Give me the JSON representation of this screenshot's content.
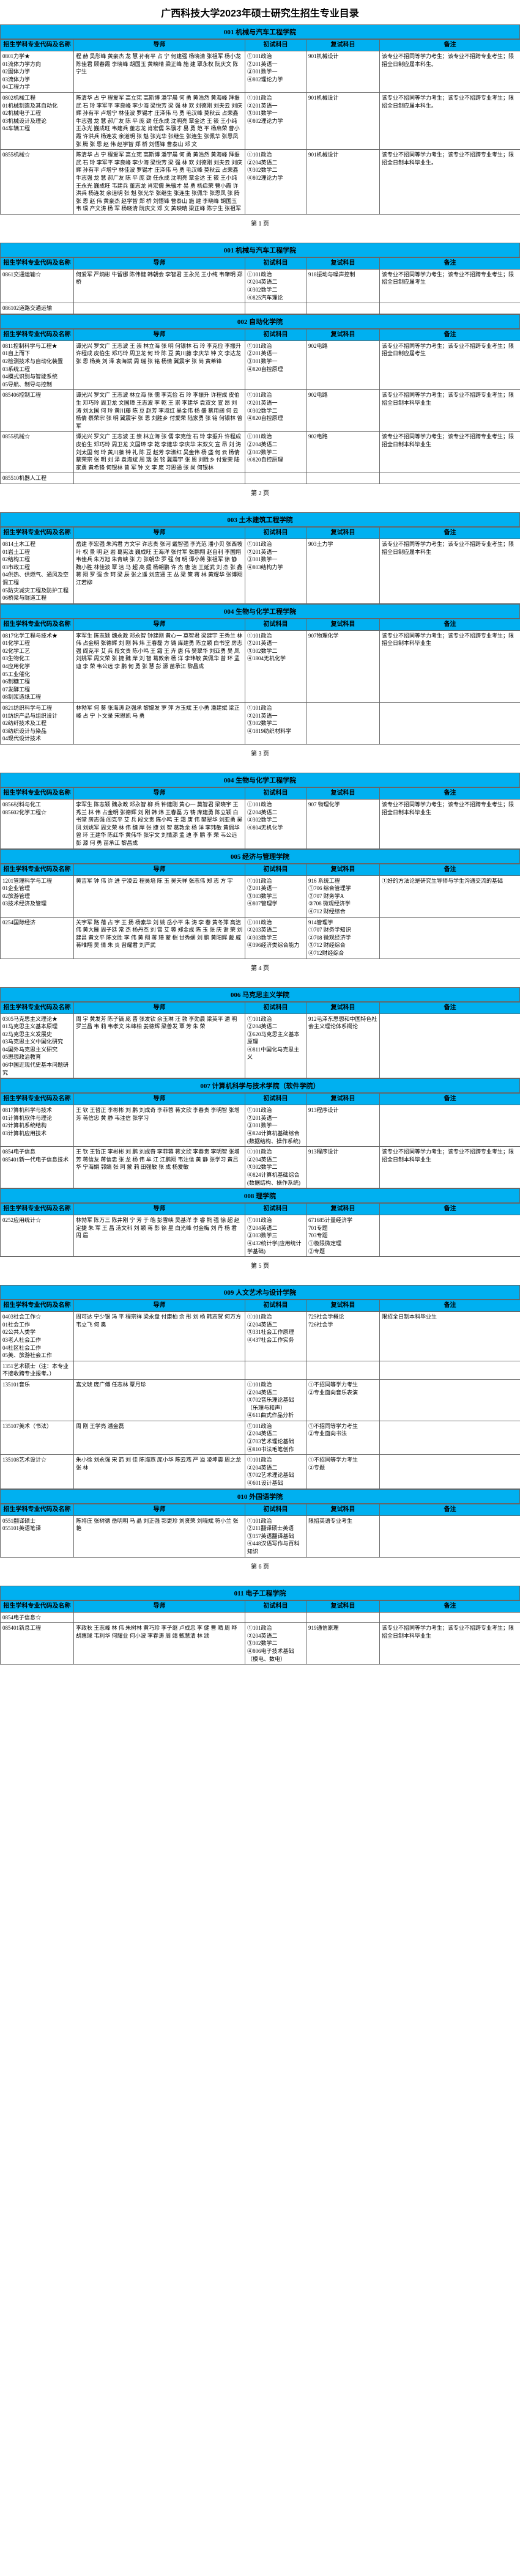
{
  "title": "广西科技大学2023年硕士研究生招生专业目录",
  "colors": {
    "header_bg": "#00b0f0",
    "border": "#666666",
    "text": "#000000",
    "bg": "#ffffff"
  },
  "headers": {
    "major": "招生学科专业代码及名称",
    "tutor": "导师",
    "exam1": "初试科目",
    "exam2": "复试科目",
    "note": "备注"
  },
  "pages": [
    {
      "colleges": [
        {
          "title": "001 机械与汽车工程学院",
          "rows": [
            {
              "major": "0801力学★\n01流体力学方向\n02固体力学\n03流体力学\n04工程力学",
              "tutor": "程 赫 吴彤峰 黄豪杰 龙 慧 孙有平 占 宁 何建强 杨晓清 张祖军 杨小龙 陈佳君 顾春霞 李晓峰 胡国玉 黄映晴 梁正峰 施 建 覃永权 阮庆文 陈宁生",
              "exam1": "①101政治\n②201英语一\n③301数学一\n④802理论力学",
              "exam2": "901机械设计",
              "note": "该专业不招同等学力考生；该专业不招跨专业考生；限招全日制应届本科生。"
            },
            {
              "major": "0802机械工程\n01机械制造及其自动化\n02机械电子工程\n03机械设计及理论\n04车辆工程",
              "tutor": "陈清华 占 宁 程爱军 高立宪 高斯博 潘宇晨 何 勇 黄浩然 黄海峰 拜振武 石 玲 李军平 李良峰 李少海 梁悦芳 梁 强 林 欢 刘德刚 刘夫云 刘庆辉 孙有平 卢增宁 林佳波 罗锡才 庄泽伟 马 勇 毛汉峰 莫秋云 占荣鑫 牛志强 龙 慧 郝广友 陈 平 庞 劲 任永成 沈明亮 覃金达 王 筱 王小纯 王永光 巍成旺 韦建兵 董志龙 肖宏儒 朱骥才 易 勇 范 平 杨启荣 曹小霞 许洪兵 杨连发 余道明 张 魁 张光华 张继生 张连生 张佩华 张恩凤 张 腾 张 恩 赵 伟 赵学智 郑 桥 刘悟锋 曹泰山 邓 文",
              "exam1": "①101政治\n②201英语一\n③301数学一\n④802理论力学",
              "exam2": "901机械设计",
              "note": "该专业不招同等学力考生；该专业不招跨专业考生；限招全日制应届本科生。"
            },
            {
              "major": "0855机械☆",
              "tutor": "陈清华 占 宁 程爱军 高立宪 高斯博 潘宇晨 何 勇 黄浩然 黄海峰 拜振武 石 玲 李军平 李良峰 李少海 梁悦芳 梁 强 林 欢 刘德刚 刘夫云 刘庆辉 孙有平 卢增宁 林佳波 罗锡才 庄泽伟 马 勇 毛汉峰 莫秋云 占荣鑫 牛志强 龙 慧 郝广友 陈 平 庞 劲 任永成 沈明亮 覃金达 王 筱 王小纯 王永光 巍成旺 韦建兵 董志龙 肖宏儒 朱骥才 易 勇 杨启荣 曹小霞 许洪兵 杨连发 余道明 张 魁 张光华 张继生 张连生 张佩华 张恩凤 张 腾 张 恩 赵 伟 黄豪杰 赵学智 郑 桥 刘悟锋 曹泰山 施 建 李晓峰 胡国玉 韦 璞 产文涛 杨 军 杨晓清 阮庆文 邓 文 黄映晴 梁正峰 陈宁生 张祖军",
              "exam1": "①101政治\n②204英语二\n③302数学二\n④802理论力学",
              "exam2": "901机械设计",
              "note": "该专业不招同等学力考生；该专业不招跨专业考生；限招全日制本科毕业生。"
            }
          ],
          "continues": true
        }
      ],
      "footer": "第 1 页"
    },
    {
      "colleges": [
        {
          "title": "001 机械与汽车工程学院",
          "rows": [
            {
              "major": "招生学科专业代码及名称",
              "tutor": "导师",
              "exam1": "初试科目",
              "exam2": "复试科目",
              "note": "备注",
              "isHeader": true
            },
            {
              "major": "0861交通运输☆",
              "tutor": "何爱军 严炳彬 牛留娜 陈伟健 韩朝会 李智君 王永光 王小纯 韦肇明 郑 桥",
              "exam1": "①101政治\n②204英语二\n③302数学二\n④825汽车理论",
              "exam2": "918振动与噪声控制",
              "note": "该专业不招同等学力考生；该专业不招跨专业考生；限招全日制应届考生"
            }
          ],
          "subrows": [
            {
              "major": "086102道路交通运输",
              "tutor": "",
              "exam1": "",
              "exam2": "",
              "note": ""
            }
          ]
        },
        {
          "title": "002 自动化学院",
          "rows": [
            {
              "major": "0811控制科学与工程★\n01自上而下\n02检测技术与自动化装置\n03系统工程\n04模式识别与智能系统\n05导航、制导与控制",
              "tutor": "谭光兴 罗文广 王志波 王 崇 林立海 张 明 何银林 石 玲 李克俭 李振升 许程成 皮伯生 邓巧玲 周卫龙 何 玲 陈 豆 黄川藤 李庆华 钟 文 李达龙 张 恩 杨英 刘 泽 袁海斌 周 瑞 张 铭 杨倩 冀震宇 张 尚 黄希锋",
              "exam1": "①101政治\n②201英语一\n③301数学一\n④820自控原理",
              "exam2": "902电路",
              "note": "该专业不招同等学力考生；该专业不招跨专业考生；限招全日制应届考生"
            },
            {
              "major": "085406控制工程",
              "tutor": "谭光兴 罗文广 王志波 林立海 张 儒 李克俭 石 玲 李振升 许程成 皮伯生 邓巧玲 周卫龙 文国璋 王志波 李 乾 王 崇 李建华 袁双文 宣 昂 刘 涛 刘太国 何 玲 黄川藤 陈 豆 赵芳 李淑红 吴金伟 杨 盛 蔡用阔 何 云 杨倩 蔡荣宗 张 明 冀震宇 张 恩 刘胜乡 付爱荣 陆家勇 张 铭 何银林 曾 军",
              "exam1": "①101政治\n②201英语一\n③302数学二\n④820自控原理",
              "exam2": "902电路",
              "note": "该专业不招同等学力考生；该专业不招跨专业考生；限招全日制本科毕业生"
            },
            {
              "major": "0855机械☆",
              "tutor": "谭光兴 罗文广 王志波 王 崇 林立海 张 儒 李克俭 石 玲 李振升 许程成 皮伯生 邓巧玲 周卫龙 文国璋 李 乾 李建华 李庆华 宋双文 宣 昂 刘 涛 刘太国 何 玲 黄川藤 钟 礼 陈 豆 赵芳 李淑红 吴金伟 杨 盛 何 云 杨倩 蔡荣宗 张 明 刘 泽 袁海斌 周 瑞 张 铭 冀震宇 张 恩 刘胜乡 付爱荣 陆家勇 黄希锋 何银林 曾 军 钟 文 李 庞 习思通 张 尚 何银林",
              "exam1": "①101政治\n②204英语二\n③302数学二\n④820自控原理",
              "exam2": "902电路",
              "note": "该专业不招同等学力考生；该专业不招跨专业考生；限招全日制本科毕业生"
            }
          ],
          "subrows": [
            {
              "major": "085510机器人工程",
              "tutor": "",
              "exam1": "",
              "exam2": "",
              "note": ""
            }
          ]
        }
      ],
      "footer": "第 2 页"
    },
    {
      "colleges": [
        {
          "title": "003 土木建筑工程学院",
          "rows": [
            {
              "major": "0814土木工程\n01岩土工程\n02结构工程\n03市政工程\n04供热、供燃气、通风及空调工程\n05防灾减灾工程及防护工程\n06桥梁与隧道工程",
              "tutor": "岳建 李宏强 朱鸿君 方文宇 许志贵 张河 戴智强 李光范 潘小贝 张西坡 叶 权 景 明 赵 岩 葛宪法 巍成旺 王海洋 张付军 张鹏翔 赵自利 李国翔 韦佳兵 朱万旭 朱青峡 张 力 张朝华 罗 强 何 明 谭小蒋 张祖军 徐 静 魏小胜 林佳波 覃 洁 马 超 高 媛 杨朝鹏 许 杰 唐 洁 王延武 刘 杰 张 鑫 蒋 翔 罗 强 余 珂 梁 辰 张之遥 刘应通 王 丛 梁 策 蒋 林 黄耀华 张博翔 江若柳",
              "exam1": "①101政治\n②201英语一\n③301数学一\n④803结构力学",
              "exam2": "903土力学",
              "note": "该专业不招同等学力考生；该专业不招跨专业考生；限招全日制应届本科生"
            }
          ]
        },
        {
          "title": "004 生物与化学工程学院",
          "rows": [
            {
              "major": "0817化学工程与技术★\n01化学工程\n02化学工艺\n03生物化工\n04应用化学\n05工业催化\n06制糖工程\n07发酵工程\n08制浆造纸工程",
              "tutor": "李军生 陈志颖 魏永政 邓永智 钟建刚 黄心一 莫智君 梁建宇 王秀兰 林 伟 占金明 张德辉 刘 刚 韩 炜 王春磊 方 铸 库建勇 陈立颖 白书堂 房志强 阎克平 艾 兵 段文贵 陈小鸣 王 霜 王 卉 唐 伟 樊翠华 刘亚勇 吴 凤 刘姚军 周文荣 张 捷 魏 岸 刘 智 葛敦余 杨 洋 李玮敏 黄佩华 曾 环 孟 迪 李 荣 韦公远 李 鹏 何 勇 张 慧 彭 源 苗承江 黎昌成",
              "exam1": "①101政治\n②201英语一\n③302数学二\n④1804无机化学",
              "exam2": "907物理化学",
              "note": "该专业不招同等学力考生；该专业不招跨专业考生；限招全日制本科毕业生"
            },
            {
              "major": "0821纺织科学与工程\n01纺织产品与组织设计\n02纺纤技术及工程\n03纺织设计与染品\n04现代设计技术",
              "tutor": "林勃军 何 葵 张海涛 赵强承 黎嫦发 罗 萍 方玉斌 王小勇 潘建斌 梁正峰 占 宁 卜文录 宋恩凯 马 勇",
              "exam1": "①101政治\n②201英语一\n③302数学二\n④1819纺织材料学",
              "exam2": "",
              "note": ""
            }
          ]
        }
      ],
      "footer": "第 3 页"
    },
    {
      "colleges": [
        {
          "title": "004 生物与化学工程学院",
          "rows": [
            {
              "major": "0856材料与化工\n085602化学工程☆",
              "tutor": "李军生 陈志颖 魏永政 邓永智 柳 兵 钟建刚 黄心一 莫智君 梁晓宇 王秀兰 林 伟 占金明 张德辉 刘 刚 韩 炜 王春磊 方 铸 库建勇 陈立颖 白书堂 房志强 阎克平 艾 兵 段文贵 陈小鸣 王 霜 唐 伟 樊翠华 刘亚勇 吴 凤 刘姚军 周文荣 林 伟 魏 岸 张 捷 刘 智 葛敦余 杨 洋 李玮敏 黄佩华 曾 环 王建华 陈红华 黄伟华 张宇文 刘情源 孟 迪 李 鹏 李 荣 韦公远 彭 源 何 勇 苗承江 黎昌成",
              "exam1": "①101政治\n②204英语二\n③302数学二\n④804无机化学",
              "exam2": "907 物理化学",
              "note": "该专业不招同等学力考生；该专业不招跨专业考生；限招全日制本科毕业生"
            }
          ]
        },
        {
          "title": "005 经济与管理学院",
          "rows": [
            {
              "major": "1201管理科学与工程\n01企业管理\n02旅游管理\n03技术经济及管理",
              "tutor": "黄吉军 钟 伟 许 进 宁凌云 程昊培 陈 玉 吴天祥 张志伟 郑 志 方 宇",
              "exam1": "①101政治\n②201英语一\n③303数学三\n④807管理学",
              "exam2": "916 系统工程\n①706 综合管理学\n②707 财务学A\n③708 微观经济学\n④712 财经综合",
              "note": "①好的方法论是研究生导师与学生沟通交流的基础"
            },
            {
              "major": "0254国际经济",
              "tutor": "关宇军 路 蓓 占 宇 王 扬 杨素华 刘 姚 岳小平 朱 涛 李 春 黄冬萍 高洁伟 黄大雁 周子廷 常 杰 杨丹杰 刘 霄 艾 蓉 郑金成 陈 玉 张 庆 谢 荣 刘建昌 黄文平 陈文胜 李 伟 黄 翔 蒋 琦 蒙 桤 甘秀娴 刘 鹏 黄阳辉 戴 威 蒋唯翔 吴 倩 朱 炎 曾耀君 刘严武",
              "exam1": "①101政治\n②203英语二\n③303数学三\n④396经济类综合能力",
              "exam2": "914管理学\n①707 财务学知识\n②708 微观经济学\n③712 财经综合\n④712财经综合",
              "note": ""
            }
          ]
        }
      ],
      "footer": "第 4 页"
    },
    {
      "colleges": [
        {
          "title": "006 马克思主义学院",
          "rows": [
            {
              "major": "0305马克思主义理论★\n01马克思主义基本原理\n02马克思主义发展史\n03马克思主义中国化研究\n04国外马克思主义研究\n05思想政治教育\n06中国近现代史基本问题研究",
              "tutor": "周 宇 黄发芳 陈子镝 庞 晋 张发钦 余玉琳 汪 敦 李勋晨 梁英平 潘 明 罗兰昌 韦 莉 韦孝文 朱峰柏 姜德辉 梁善发 覃 芳 朱 荣",
              "exam1": "①101政治\n②204英语二\n③620马克思主义基本原理\n④811中国化马克思主义",
              "exam2": "912毛泽东思想和中国特色社会主义理论体系概论",
              "note": ""
            }
          ]
        },
        {
          "title": "007 计算机科学与技术学院（软件学院）",
          "rows": [
            {
              "major": "0817算机科学与技术\n01计算机软件与理论\n02计算机系统结构\n03计算机应用技术",
              "tutor": "王 钦 王哲正 李彬彬 刘 鹏 刘成奇 李菲蓉 蒋文欣 李春贵 李明智 张增芳 蒋信忠 黄 静 韦注信 张学习",
              "exam1": "①101政治\n②201英语一\n③301数学一\n④824计算机基础综合 (数据结构、操作系统)",
              "exam2": "913程序设计",
              "note": ""
            },
            {
              "major": "0854电子信息\n085401新一代电子信息技术",
              "tutor": "王 钦 王哲正 李彬彬 刘 鹏 刘成奇 李菲蓉 蒋文欣 李春贵 李明智 张增芳 蒋信友 蒋信忠 张 龙 杨 伟 牟 江 江鹏翔 韦注信 黄 静 张学习 黄吕华 宁海娟 郭嫣 张 珂 蒙 莉 田强敏 张 成 杨爱敏",
              "exam1": "①101政治\n②204英语二\n③302数学二\n④824计算机基础综合 (数据结构、操作系统)",
              "exam2": "913程序设计",
              "note": "该专业不招同等学力考生；该专业不招跨专业考生；限招全日制本科毕业生"
            }
          ]
        },
        {
          "title": "008 理学院",
          "rows": [
            {
              "major": "0252应用统计☆",
              "tutor": "林勃军 陈万三 陈井刚 宁 芳 于 皓 彭雪峡 吴基洋 李 睿 熊 强 徐 超 赵定捷 朱 军 王 昌 汤文科 刘 颖 蒋 影 徐 星 白光峰 付金梅 刘 丹 杨 君 周 眉",
              "exam1": "①101政治\n②204英语二\n③303数学三\n④432统计学(应用统计学基础)",
              "exam2": "671685计量经济学\n701专题\n703专题\n①极限微定理\n②专题",
              "note": ""
            }
          ]
        }
      ],
      "footer": "第 5 页"
    },
    {
      "colleges": [
        {
          "title": "009 人文艺术与设计学院",
          "rows": [
            {
              "major": "学科专业代码及名称",
              "tutor": "导师",
              "exam1": "初试科目",
              "exam2": "复试科目",
              "note": "备注",
              "isHeader": true
            },
            {
              "major": "0403社会工作☆\n01社会工作\n02公共人类学\n03老人社会工作\n04社区社会工作\n05美、旅游社会工作",
              "tutor": "周可达 宁少银 冯 平 程宗祥 梁永盘 付康柏 余 彤 刘 杨 韩志贺 何万方 韦立飞 何 奥",
              "exam1": "①101政治\n②204英语二\n③331社会工作原理\n④437社会工作实务",
              "exam2": "725社会学概论\n726社会学",
              "note": "限招全日制本科毕业生"
            },
            {
              "major": "1351艺术硕士（注：本专业不接收跨专业报考。）",
              "tutor": "",
              "exam1": "",
              "exam2": "",
              "note": ""
            },
            {
              "major": "135101音乐",
              "tutor": "宫文琥 庞广傅 任志林 覃月珍",
              "exam1": "①101政治\n②204英语二\n③702音乐理论基础（乐理与和声）\n④611曲式作品分析",
              "exam2": "①不招同等学力考生\n②专业面向音乐表演",
              "note": ""
            },
            {
              "major": "135107美术（书法）",
              "tutor": "周 刚 王学亮 潘金磊",
              "exam1": "①101政治\n②204英语二\n③703艺术理论基础\n④810书法毛笔创作",
              "exam2": "①不招同等学力考生\n②专业面向书法",
              "note": ""
            },
            {
              "major": "135108艺术设计☆",
              "tutor": "朱小徐 刘永强 宋 箭 刘 佳 陈海燕 庞小华 陈云燕 严 溢 凌坤震 周之龙 张 林",
              "exam1": "①101政治\n②204英语二\n③702艺术理论基础\n④601设计基础",
              "exam2": "①不招同等学力考生\n②专题",
              "note": ""
            }
          ]
        },
        {
          "title": "010 外国语学院",
          "rows": [
            {
              "major": "0551翻译硕士\n055101英语笔译",
              "tutor": "陈将庄 张树德 岳明明 马 晶 刘正强 郭更珍 刘贤荣 刘晓斌 符小兰 张 艳",
              "exam1": "①101政治\n②211翻译硕士英语\n③357英语翻译基础\n④448汉语写作与百科知识",
              "exam2": "限招英语专业考生",
              "note": ""
            }
          ]
        }
      ],
      "footer": "第 6 页"
    },
    {
      "colleges": [
        {
          "title": "011 电子工程学院",
          "rows": [
            {
              "major": "0854电子信息☆",
              "tutor": "",
              "exam1": "",
              "exam2": "",
              "note": ""
            },
            {
              "major": "085401新息工程",
              "tutor": "李政秋 王志峰 林 伟 朱树林 黄巧珍 李子继 卢成忠 李 健 曹 晒 周 晔 胡惠球 韦利华 何耀业 何小波 李春涛 周 靖 甄慧清 林 颂",
              "exam1": "①101政治\n②204英语二\n③302数学二\n④806电子技术基础（模电、数电）",
              "exam2": "919通信原理",
              "note": "该专业不招同等学力考生；该专业不招跨专业考生；限招全日制本科毕业生"
            }
          ]
        }
      ],
      "footer": ""
    }
  ]
}
